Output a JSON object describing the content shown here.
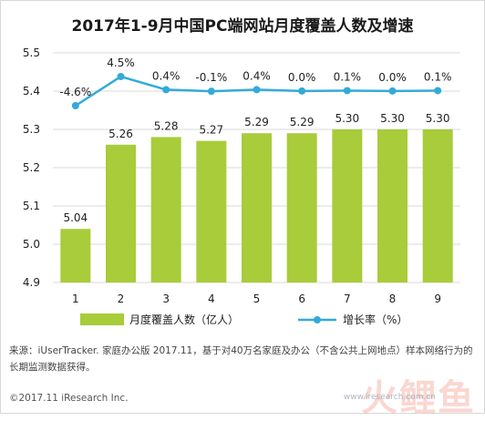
{
  "title": "2017年1-9月中国PC端网站月度覆盖人数及增速",
  "source_note": "来源：iUserTracker. 家庭办公版 2017.11，基于对40万名家庭及办公（不含公共上网地点）样本网络行为的长期监测数据获得。",
  "copyright": "©2017.11 iResearch Inc.",
  "watermark": {
    "logo": "火鲤鱼",
    "site": "www.iresearch.com.cn"
  },
  "colors": {
    "bar": "#a8cc3a",
    "line": "#33aad9",
    "grid": "#d9d9d9",
    "text": "#222222"
  },
  "chart_data": {
    "type": "bar",
    "categories": [
      "1",
      "2",
      "3",
      "4",
      "5",
      "6",
      "7",
      "8",
      "9"
    ],
    "ylim": [
      4.9,
      5.5
    ],
    "yticks": [
      "4.9",
      "5.0",
      "5.1",
      "5.2",
      "5.3",
      "5.4",
      "5.5"
    ],
    "grid": true,
    "legend_position": "bottom",
    "series": [
      {
        "name": "月度覆盖人数（亿人）",
        "type": "bar",
        "values": [
          5.04,
          5.26,
          5.28,
          5.27,
          5.29,
          5.29,
          5.3,
          5.3,
          5.3
        ],
        "labels": [
          "5.04",
          "5.26",
          "5.28",
          "5.27",
          "5.29",
          "5.29",
          "5.30",
          "5.30",
          "5.30"
        ]
      },
      {
        "name": "增长率（%）",
        "type": "line",
        "values": [
          -4.6,
          4.5,
          0.4,
          -0.1,
          0.4,
          0.0,
          0.1,
          0.0,
          0.1
        ],
        "labels": [
          "-4.6%",
          "4.5%",
          "0.4%",
          "-0.1%",
          "0.4%",
          "0.0%",
          "0.1%",
          "0.0%",
          "0.1%"
        ]
      }
    ]
  }
}
